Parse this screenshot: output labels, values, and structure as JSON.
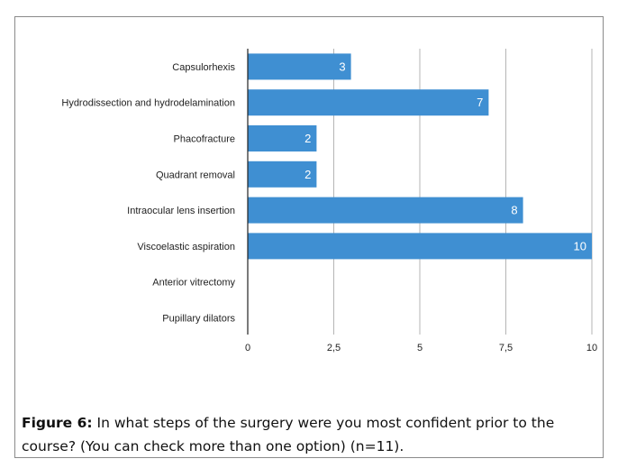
{
  "chart_data": {
    "type": "bar",
    "orientation": "horizontal",
    "categories": [
      "Capsulorhexis",
      "Hydrodissection and hydrodelamination",
      "Phacofracture",
      "Quadrant removal",
      "Intraocular lens insertion",
      "Viscoelastic aspiration",
      "Anterior vitrectomy",
      "Pupillary dilators"
    ],
    "values": [
      3,
      7,
      2,
      2,
      8,
      10,
      0,
      0
    ],
    "value_labels": [
      "3",
      "7",
      "2",
      "2",
      "8",
      "10",
      "",
      ""
    ],
    "xlim": [
      0,
      10
    ],
    "xticks": [
      0,
      2.5,
      5,
      7.5,
      10
    ],
    "xtick_labels": [
      "0",
      "2,5",
      "5",
      "7,5",
      "10"
    ],
    "grid": "vertical",
    "bar_color": "#3f8fd2",
    "grid_color": "#b5b5b5"
  },
  "caption": {
    "label": "Figure 6:",
    "text": " In what steps of the surgery were you most confident prior to the course? (You can check more than one option) (n=11)."
  }
}
